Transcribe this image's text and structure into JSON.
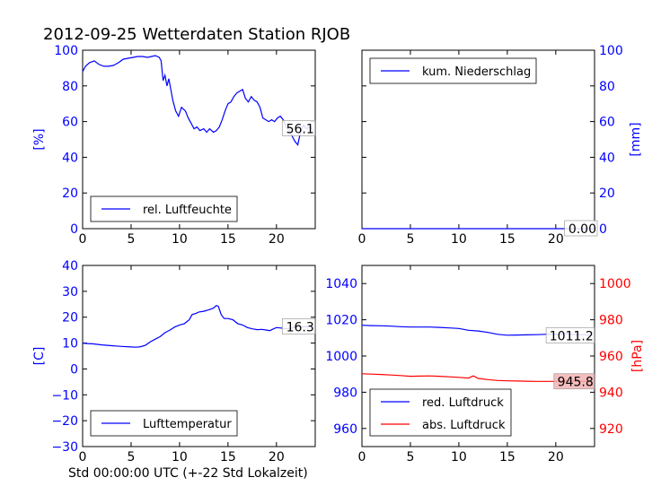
{
  "title": "2012-09-25 Wetterdaten Station RJOB",
  "footer_xlabel": "Std 00:00:00 UTC (+-22 Std Lokalzeit)",
  "colors": {
    "primary": "#0000ff",
    "secondary": "#ff0000",
    "last_value_box_fill": "#ffffff",
    "last_value_box_fill_secondary": "#f4b3b3"
  },
  "chart_data": [
    {
      "id": "humidity",
      "type": "line",
      "xlim": [
        0,
        24
      ],
      "ylim": [
        0,
        100
      ],
      "xticks": [
        "0",
        "5",
        "10",
        "15",
        "20"
      ],
      "yticks": [
        "0",
        "20",
        "40",
        "60",
        "80",
        "100"
      ],
      "ylabel": "[%]",
      "legend_position": "lower-left",
      "last_value": "56.1",
      "series": [
        {
          "name": "rel. Luftfeuchte",
          "color": "#0000ff",
          "points": [
            [
              0,
              88
            ],
            [
              0.3,
              91
            ],
            [
              0.7,
              93
            ],
            [
              1.2,
              94
            ],
            [
              1.7,
              92
            ],
            [
              2.2,
              91
            ],
            [
              2.7,
              91
            ],
            [
              3.2,
              91.5
            ],
            [
              3.7,
              93
            ],
            [
              4.2,
              95
            ],
            [
              4.7,
              95.5
            ],
            [
              5.2,
              96
            ],
            [
              5.7,
              96.5
            ],
            [
              6.2,
              96.5
            ],
            [
              6.7,
              96
            ],
            [
              7.1,
              96.5
            ],
            [
              7.5,
              97
            ],
            [
              7.9,
              96
            ],
            [
              8.1,
              94
            ],
            [
              8.3,
              83
            ],
            [
              8.5,
              86
            ],
            [
              8.7,
              80
            ],
            [
              8.9,
              84
            ],
            [
              9.1,
              78
            ],
            [
              9.3,
              72
            ],
            [
              9.6,
              66
            ],
            [
              9.9,
              63
            ],
            [
              10.2,
              68
            ],
            [
              10.6,
              66
            ],
            [
              10.9,
              62
            ],
            [
              11.2,
              59
            ],
            [
              11.5,
              56
            ],
            [
              11.8,
              57
            ],
            [
              12.1,
              55
            ],
            [
              12.5,
              56
            ],
            [
              12.8,
              54
            ],
            [
              13.1,
              56
            ],
            [
              13.5,
              54
            ],
            [
              13.8,
              55
            ],
            [
              14.1,
              57
            ],
            [
              14.4,
              61
            ],
            [
              14.7,
              66
            ],
            [
              15.0,
              70
            ],
            [
              15.3,
              71
            ],
            [
              15.6,
              74
            ],
            [
              15.9,
              76
            ],
            [
              16.2,
              77
            ],
            [
              16.5,
              78
            ],
            [
              16.8,
              73
            ],
            [
              17.1,
              71
            ],
            [
              17.4,
              74
            ],
            [
              17.7,
              72
            ],
            [
              18.0,
              71
            ],
            [
              18.3,
              68
            ],
            [
              18.6,
              62
            ],
            [
              18.9,
              61
            ],
            [
              19.2,
              60
            ],
            [
              19.5,
              61
            ],
            [
              19.8,
              60
            ],
            [
              20.1,
              62
            ],
            [
              20.4,
              63
            ],
            [
              20.7,
              61
            ],
            [
              21.0,
              57
            ],
            [
              21.3,
              55
            ],
            [
              21.6,
              52
            ],
            [
              21.9,
              49
            ],
            [
              22.2,
              47
            ],
            [
              22.4,
              52
            ],
            [
              22.6,
              56
            ],
            [
              22.8,
              58
            ],
            [
              23.1,
              56
            ],
            [
              23.4,
              57
            ],
            [
              23.7,
              56.1
            ]
          ]
        }
      ]
    },
    {
      "id": "precip",
      "type": "line",
      "xlim": [
        0,
        24
      ],
      "ylim": [
        0,
        100
      ],
      "xticks": [
        "0",
        "5",
        "10",
        "15",
        "20"
      ],
      "yticks": [
        "0",
        "20",
        "40",
        "60",
        "80",
        "100"
      ],
      "ylabel": "[mm]",
      "legend_position": "top-left",
      "last_value": "0.00",
      "series": [
        {
          "name": "kum. Niederschlag",
          "color": "#0000ff",
          "points": [
            [
              0,
              0
            ],
            [
              24,
              0
            ]
          ]
        }
      ]
    },
    {
      "id": "temperature",
      "type": "line",
      "xlim": [
        0,
        24
      ],
      "ylim": [
        -30,
        40
      ],
      "xticks": [
        "0",
        "5",
        "10",
        "15",
        "20"
      ],
      "yticks": [
        "−30",
        "−20",
        "−10",
        "0",
        "10",
        "20",
        "30",
        "40"
      ],
      "ylabel": "[C]",
      "legend_position": "lower-left",
      "last_value": "16.3",
      "series": [
        {
          "name": "Lufttemperatur",
          "color": "#0000ff",
          "points": [
            [
              0,
              10
            ],
            [
              0.5,
              9.8
            ],
            [
              1,
              9.7
            ],
            [
              2,
              9.3
            ],
            [
              3,
              9
            ],
            [
              4,
              8.7
            ],
            [
              5,
              8.5
            ],
            [
              5.5,
              8.4
            ],
            [
              6,
              8.6
            ],
            [
              6.5,
              9.2
            ],
            [
              7,
              10.5
            ],
            [
              7.5,
              11.5
            ],
            [
              8,
              12.5
            ],
            [
              8.5,
              14
            ],
            [
              9,
              15
            ],
            [
              9.5,
              16.2
            ],
            [
              10,
              17
            ],
            [
              10.5,
              17.5
            ],
            [
              11,
              19
            ],
            [
              11.3,
              21
            ],
            [
              11.7,
              21.5
            ],
            [
              12,
              22
            ],
            [
              12.5,
              22.3
            ],
            [
              13,
              22.8
            ],
            [
              13.5,
              23.5
            ],
            [
              13.8,
              24.5
            ],
            [
              14,
              24.2
            ],
            [
              14.3,
              21
            ],
            [
              14.6,
              19.5
            ],
            [
              15,
              19.5
            ],
            [
              15.5,
              19
            ],
            [
              16,
              17.5
            ],
            [
              16.5,
              17
            ],
            [
              17,
              16
            ],
            [
              17.5,
              15.5
            ],
            [
              18,
              15.2
            ],
            [
              18.5,
              15.3
            ],
            [
              19,
              15
            ],
            [
              19.3,
              14.8
            ],
            [
              19.7,
              15.5
            ],
            [
              20,
              16
            ],
            [
              20.5,
              15.8
            ],
            [
              21,
              15.5
            ],
            [
              21.5,
              15.7
            ],
            [
              22,
              16.4
            ],
            [
              22.5,
              16.2
            ],
            [
              23,
              16.4
            ],
            [
              23.7,
              16.3
            ]
          ]
        }
      ]
    },
    {
      "id": "pressure",
      "type": "line",
      "xlim": [
        0,
        24
      ],
      "ylim_left": [
        950,
        1050
      ],
      "ylim_right": [
        910,
        1010
      ],
      "xticks": [
        "0",
        "5",
        "10",
        "15",
        "20"
      ],
      "yticks_left": [
        "960",
        "980",
        "1000",
        "1020",
        "1040"
      ],
      "yticks_right": [
        "920",
        "940",
        "960",
        "980",
        "1000"
      ],
      "ylabel_right": "[hPa]",
      "legend_position": "lower-left",
      "last_value_left": "1011.2",
      "last_value_right": "945.8",
      "series": [
        {
          "name": "red. Luftdruck",
          "color": "#0000ff",
          "axis": "left",
          "points": [
            [
              0,
              1017
            ],
            [
              1,
              1016.8
            ],
            [
              2,
              1016.7
            ],
            [
              3,
              1016.5
            ],
            [
              4,
              1016.2
            ],
            [
              5,
              1016
            ],
            [
              6,
              1016
            ],
            [
              7,
              1016
            ],
            [
              8,
              1015.8
            ],
            [
              9,
              1015.5
            ],
            [
              10,
              1015.2
            ],
            [
              11,
              1014.2
            ],
            [
              12,
              1013.8
            ],
            [
              13,
              1013
            ],
            [
              14,
              1012
            ],
            [
              15,
              1011.5
            ],
            [
              16,
              1011.6
            ],
            [
              17,
              1011.7
            ],
            [
              18,
              1011.8
            ],
            [
              19,
              1012
            ],
            [
              20,
              1012
            ],
            [
              21,
              1012.3
            ],
            [
              22,
              1011.8
            ],
            [
              23,
              1011.8
            ],
            [
              23.7,
              1011.2
            ]
          ]
        },
        {
          "name": "abs. Luftdruck",
          "color": "#ff0000",
          "axis": "right",
          "points": [
            [
              0,
              950.2
            ],
            [
              1,
              950
            ],
            [
              2,
              949.8
            ],
            [
              3,
              949.5
            ],
            [
              4,
              949.2
            ],
            [
              5,
              948.8
            ],
            [
              6,
              948.9
            ],
            [
              7,
              949
            ],
            [
              8,
              948.8
            ],
            [
              9,
              948.5
            ],
            [
              10,
              948.2
            ],
            [
              11,
              947.8
            ],
            [
              11.5,
              949
            ],
            [
              12,
              947.6
            ],
            [
              13,
              947
            ],
            [
              14,
              946.5
            ],
            [
              15,
              946.3
            ],
            [
              16,
              946.2
            ],
            [
              17,
              946.1
            ],
            [
              18,
              946
            ],
            [
              19,
              946
            ],
            [
              20,
              946
            ],
            [
              21,
              946.3
            ],
            [
              22,
              946
            ],
            [
              23,
              946
            ],
            [
              23.7,
              945.8
            ]
          ]
        }
      ]
    }
  ]
}
